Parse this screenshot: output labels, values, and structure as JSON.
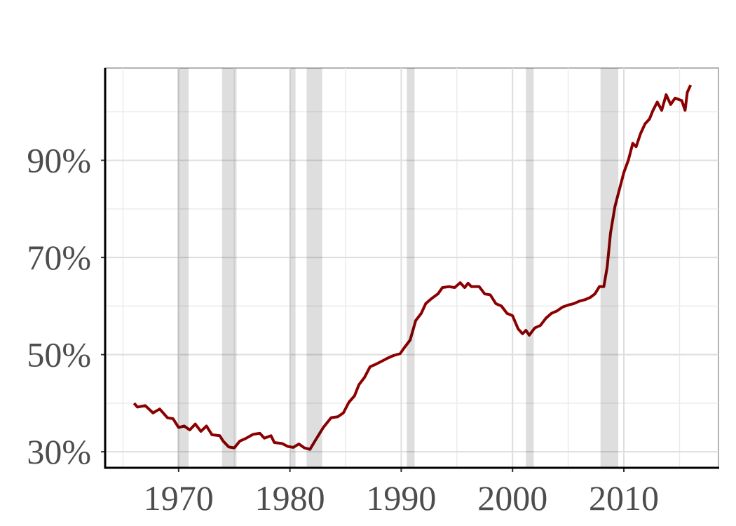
{
  "chart_data": {
    "type": "line",
    "x": [
      1966,
      1966.3,
      1967,
      1967.7,
      1968.3,
      1969,
      1969.5,
      1970,
      1970.5,
      1971,
      1971.5,
      1972,
      1972.5,
      1973,
      1973.7,
      1974,
      1974.5,
      1975,
      1975.5,
      1976,
      1976.7,
      1977.3,
      1977.7,
      1978.3,
      1978.6,
      1979.3,
      1979.8,
      1980.3,
      1980.8,
      1981.3,
      1981.8,
      1982.3,
      1983,
      1983.7,
      1984.3,
      1984.8,
      1985.3,
      1985.8,
      1986.2,
      1986.7,
      1987.2,
      1987.7,
      1988.3,
      1988.8,
      1989.3,
      1989.9,
      1990.3,
      1990.8,
      1991.3,
      1991.8,
      1992.2,
      1992.7,
      1993.3,
      1993.7,
      1994.3,
      1994.8,
      1995.3,
      1995.7,
      1996,
      1996.3,
      1997,
      1997.5,
      1998,
      1998.5,
      1999,
      1999.5,
      2000,
      2000.5,
      2000.9,
      2001.2,
      2001.5,
      2002,
      2002.5,
      2003,
      2003.5,
      2004,
      2004.5,
      2005,
      2005.5,
      2006,
      2006.5,
      2007,
      2007.4,
      2007.8,
      2008.2,
      2008.5,
      2008.8,
      2009.2,
      2009.6,
      2010,
      2010.4,
      2010.8,
      2011.1,
      2011.5,
      2011.9,
      2012.3,
      2012.6,
      2013,
      2013.4,
      2013.8,
      2014.2,
      2014.6,
      2015.2,
      2015.5,
      2015.7,
      2016
    ],
    "series": [
      {
        "color": "#8b0000",
        "values": [
          40,
          39.2,
          39.5,
          38,
          38.8,
          37,
          36.8,
          35,
          35.3,
          34.5,
          35.7,
          34.2,
          35.3,
          33.5,
          33.3,
          32.2,
          31,
          30.8,
          32.2,
          32.7,
          33.6,
          33.8,
          32.8,
          33.3,
          31.9,
          31.7,
          31.1,
          30.9,
          31.6,
          30.8,
          30.5,
          32.4,
          35,
          37,
          37.2,
          38,
          40.2,
          41.5,
          43.8,
          45.3,
          47.5,
          48,
          48.7,
          49.3,
          49.8,
          50.2,
          51.5,
          53,
          57,
          58.5,
          60.5,
          61.5,
          62.5,
          63.8,
          64,
          63.8,
          64.8,
          63.8,
          64.7,
          64,
          64,
          62.5,
          62.3,
          60.5,
          60,
          58.5,
          58,
          55.3,
          54.3,
          55,
          54,
          55.5,
          56,
          57.5,
          58.5,
          59,
          59.8,
          60.2,
          60.5,
          61,
          61.3,
          61.8,
          62.5,
          64,
          64,
          68,
          75,
          80.5,
          84,
          87.5,
          90,
          93.5,
          92.8,
          95.5,
          97.5,
          98.5,
          100.2,
          102,
          100.3,
          103.5,
          101.5,
          102.8,
          102.3,
          100.3,
          104,
          105.5
        ]
      }
    ],
    "recessions": [
      [
        1969.9,
        1970.9
      ],
      [
        1973.9,
        1975.2
      ],
      [
        1980.0,
        1980.5
      ],
      [
        1981.5,
        1982.9
      ],
      [
        1990.5,
        1991.2
      ],
      [
        2001.2,
        2001.9
      ],
      [
        2007.9,
        2009.5
      ]
    ],
    "recession_color": "#d9d9d9",
    "xlim": [
      1963.4,
      2018.5
    ],
    "xticks": [
      1970,
      1980,
      1990,
      2000,
      2010
    ],
    "xminor": [
      1965,
      1975,
      1985,
      1995,
      2005,
      2015
    ],
    "ylim": [
      26.7,
      109
    ],
    "yticks": [
      {
        "value": 30,
        "label": "30%"
      },
      {
        "value": 50,
        "label": "50%"
      },
      {
        "value": 70,
        "label": "70%"
      },
      {
        "value": 90,
        "label": "90%"
      }
    ],
    "yminor": [
      40,
      60,
      80,
      100
    ],
    "grid": true
  }
}
